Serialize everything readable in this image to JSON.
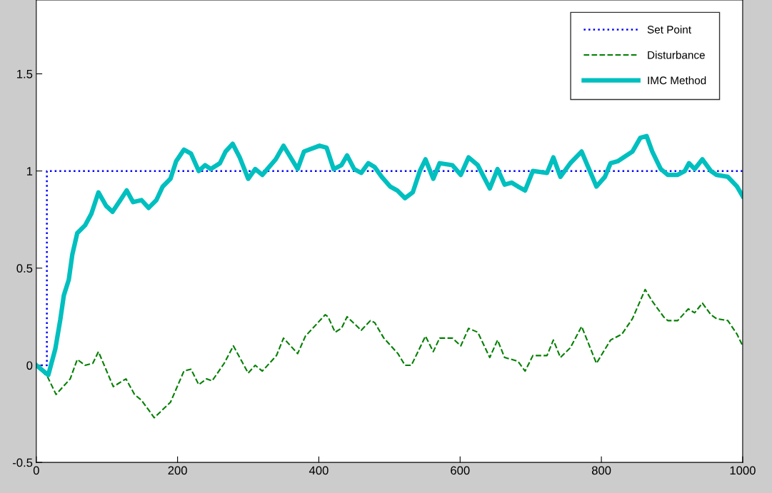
{
  "chart_data": {
    "type": "line",
    "xlim": [
      0,
      1000
    ],
    "xticks": [
      0,
      200,
      400,
      600,
      800,
      1000
    ],
    "ylim": [
      -0.5,
      1.88
    ],
    "yticks": [
      -0.5,
      0,
      0.5,
      1,
      1.5
    ],
    "grid": false,
    "legend": "top right",
    "series": [
      {
        "name": "Set Point",
        "type": "step",
        "color": "#0000ff",
        "line_style": "dotted",
        "x": [
          0,
          15,
          1000
        ],
        "values": [
          0,
          1,
          1
        ]
      },
      {
        "name": "Disturbance",
        "color": "#007f00",
        "line_style": "dashed",
        "x": [
          0,
          16,
          28,
          48,
          58,
          69,
          80,
          88,
          109,
          127,
          139,
          149,
          167,
          190,
          209,
          219,
          230,
          241,
          249,
          266,
          279,
          300,
          310,
          320,
          340,
          350,
          370,
          381,
          409,
          413,
          423,
          432,
          440,
          460,
          473,
          479,
          492,
          512,
          522,
          531,
          543,
          551,
          562,
          571,
          589,
          601,
          612,
          625,
          642,
          653,
          663,
          673,
          682,
          692,
          703,
          723,
          732,
          742,
          756,
          772,
          793,
          813,
          829,
          844,
          862,
          872,
          888,
          894,
          908,
          923,
          932,
          943,
          955,
          963,
          979,
          992,
          1000
        ],
        "values": [
          0.0,
          -0.06,
          -0.15,
          -0.07,
          0.03,
          0.0,
          0.01,
          0.07,
          -0.11,
          -0.07,
          -0.15,
          -0.18,
          -0.27,
          -0.19,
          -0.03,
          -0.02,
          -0.1,
          -0.07,
          -0.08,
          0.01,
          0.1,
          -0.04,
          0.0,
          -0.03,
          0.05,
          0.14,
          0.06,
          0.15,
          0.26,
          0.25,
          0.17,
          0.19,
          0.25,
          0.18,
          0.23,
          0.22,
          0.14,
          0.06,
          0.0,
          0.0,
          0.09,
          0.15,
          0.07,
          0.14,
          0.14,
          0.1,
          0.19,
          0.17,
          0.04,
          0.13,
          0.04,
          0.03,
          0.02,
          -0.03,
          0.05,
          0.05,
          0.13,
          0.04,
          0.09,
          0.2,
          0.01,
          0.13,
          0.16,
          0.24,
          0.39,
          0.33,
          0.25,
          0.23,
          0.23,
          0.29,
          0.27,
          0.32,
          0.26,
          0.24,
          0.23,
          0.16,
          0.1
        ]
      },
      {
        "name": "IMC Method",
        "color": "#00bfbf",
        "line_style": "solid",
        "x": [
          0,
          17,
          27,
          34,
          39,
          46,
          51,
          58,
          69,
          78,
          88,
          99,
          108,
          119,
          128,
          137,
          149,
          159,
          170,
          179,
          190,
          198,
          209,
          219,
          230,
          239,
          247,
          260,
          268,
          278,
          288,
          300,
          310,
          320,
          339,
          350,
          370,
          379,
          401,
          411,
          421,
          432,
          440,
          450,
          460,
          470,
          479,
          489,
          501,
          511,
          522,
          533,
          543,
          551,
          562,
          571,
          589,
          601,
          612,
          625,
          642,
          653,
          663,
          673,
          682,
          692,
          703,
          723,
          732,
          742,
          756,
          772,
          793,
          805,
          813,
          823,
          844,
          855,
          864,
          872,
          884,
          894,
          908,
          918,
          924,
          932,
          943,
          955,
          963,
          979,
          992,
          1000
        ],
        "values": [
          0,
          -0.05,
          0.085,
          0.235,
          0.36,
          0.44,
          0.57,
          0.68,
          0.72,
          0.78,
          0.89,
          0.82,
          0.79,
          0.85,
          0.9,
          0.84,
          0.85,
          0.81,
          0.85,
          0.92,
          0.96,
          1.05,
          1.11,
          1.09,
          1.0,
          1.03,
          1.01,
          1.04,
          1.1,
          1.14,
          1.07,
          0.96,
          1.01,
          0.98,
          1.06,
          1.13,
          1.01,
          1.1,
          1.13,
          1.12,
          1.01,
          1.03,
          1.08,
          1.01,
          0.99,
          1.04,
          1.02,
          0.97,
          0.92,
          0.9,
          0.86,
          0.89,
          1.0,
          1.06,
          0.96,
          1.04,
          1.03,
          0.98,
          1.07,
          1.03,
          0.91,
          1.01,
          0.93,
          0.94,
          0.92,
          0.9,
          1.0,
          0.99,
          1.07,
          0.97,
          1.04,
          1.1,
          0.92,
          0.97,
          1.04,
          1.05,
          1.1,
          1.17,
          1.18,
          1.1,
          1.01,
          0.98,
          0.98,
          1.0,
          1.04,
          1.01,
          1.06,
          1.0,
          0.98,
          0.97,
          0.92,
          0.87
        ]
      }
    ]
  }
}
